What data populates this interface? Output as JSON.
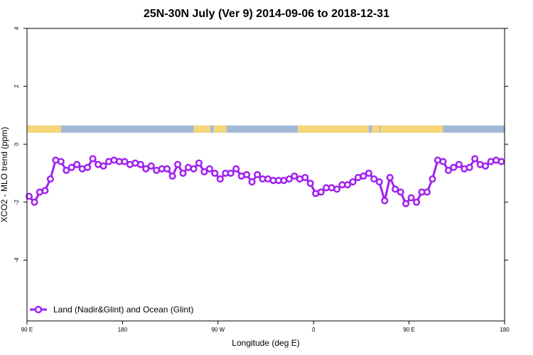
{
  "chart_data": {
    "type": "line",
    "title": "25N-30N July (Ver 9)   2014-09-06 to 2018-12-31",
    "xlabel": "Longitude (deg E)",
    "ylabel": "XCO2 - MLO trend (ppm)",
    "xlim": [
      90,
      540
    ],
    "ylim": [
      -6.1,
      4
    ],
    "x_ticks": [
      {
        "value": 90,
        "label": "90 E"
      },
      {
        "value": 180,
        "label": "180"
      },
      {
        "value": 270,
        "label": "90 W"
      },
      {
        "value": 360,
        "label": "0"
      },
      {
        "value": 450,
        "label": "90 E"
      },
      {
        "value": 540,
        "label": "180"
      }
    ],
    "y_ticks": [
      {
        "value": 4,
        "label": "4"
      },
      {
        "value": 2,
        "label": "2"
      },
      {
        "value": 0,
        "label": "0"
      },
      {
        "value": -2,
        "label": "-2"
      },
      {
        "value": -4,
        "label": "-4"
      }
    ],
    "grid": false,
    "legend": {
      "position": "bottom-left",
      "entries": [
        {
          "label": "Land (Nadir&Glint) and Ocean (Glint)",
          "color": "#a020f0"
        }
      ]
    },
    "land_ocean_band": {
      "y_range": [
        0.4,
        0.65
      ],
      "ocean_color": "#a3b8d8",
      "land_color": "#f5d77a",
      "land_segments": [
        [
          90,
          122
        ],
        [
          247,
          263
        ],
        [
          266,
          278
        ],
        [
          345,
          412
        ],
        [
          415,
          422
        ],
        [
          423,
          482
        ]
      ]
    },
    "series": [
      {
        "name": "Land (Nadir&Glint) and Ocean (Glint)",
        "color": "#a020f0",
        "x": [
          92,
          97,
          102,
          107,
          112,
          117,
          122,
          127,
          132,
          137,
          142,
          147,
          152,
          157,
          162,
          167,
          172,
          177,
          182,
          187,
          192,
          197,
          202,
          207,
          212,
          217,
          222,
          227,
          232,
          237,
          242,
          247,
          252,
          257,
          262,
          267,
          272,
          277,
          282,
          287,
          292,
          297,
          302,
          307,
          312,
          317,
          322,
          327,
          332,
          337,
          342,
          347,
          352,
          357,
          362,
          367,
          372,
          377,
          382,
          387,
          392,
          397,
          402,
          407,
          412,
          417,
          422,
          427,
          432,
          437,
          442,
          447,
          452,
          457,
          462,
          467,
          472,
          477,
          482,
          487,
          492,
          497,
          502,
          507,
          512,
          517,
          522,
          527,
          532,
          537
        ],
        "y": [
          -1.8,
          -2.0,
          -1.65,
          -1.6,
          -1.2,
          -0.55,
          -0.6,
          -0.9,
          -0.8,
          -0.7,
          -0.85,
          -0.8,
          -0.5,
          -0.7,
          -0.75,
          -0.6,
          -0.55,
          -0.6,
          -0.6,
          -0.7,
          -0.65,
          -0.7,
          -0.85,
          -0.75,
          -0.9,
          -0.85,
          -0.85,
          -1.1,
          -0.7,
          -1.0,
          -0.8,
          -0.85,
          -0.65,
          -0.95,
          -0.85,
          -1.0,
          -1.2,
          -1.0,
          -1.0,
          -0.85,
          -1.1,
          -1.05,
          -1.3,
          -1.05,
          -1.2,
          -1.2,
          -1.25,
          -1.25,
          -1.25,
          -1.2,
          -1.1,
          -1.2,
          -1.15,
          -1.35,
          -1.7,
          -1.65,
          -1.5,
          -1.5,
          -1.55,
          -1.4,
          -1.4,
          -1.3,
          -1.15,
          -1.1,
          -1.0,
          -1.2,
          -1.3,
          -1.95,
          -1.15,
          -1.55,
          -1.65,
          -2.05,
          -1.85,
          -2.0,
          -1.65,
          -1.65,
          -1.2,
          -0.55,
          -0.6,
          -0.9,
          -0.8,
          -0.7,
          -0.85,
          -0.8,
          -0.5,
          -0.7,
          -0.75,
          -0.6,
          -0.55,
          -0.6
        ]
      }
    ]
  }
}
